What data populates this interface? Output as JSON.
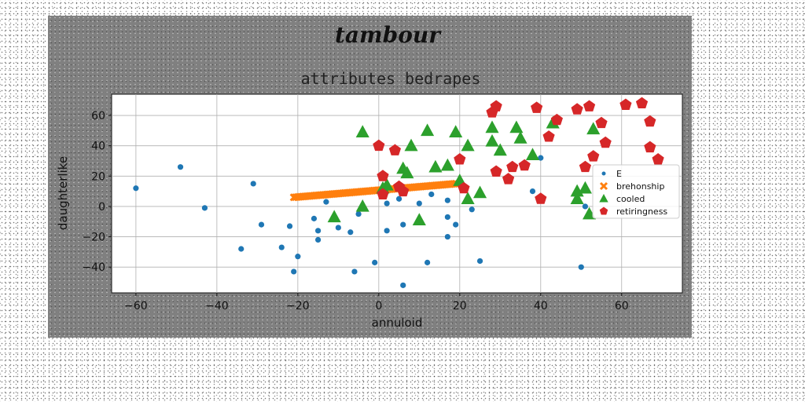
{
  "chart_data": {
    "type": "scatter",
    "suptitle": "tambour",
    "title": "attributes bedrapes",
    "xlabel": "annuloid",
    "ylabel": "daughterlike",
    "xlim": [
      -66,
      75
    ],
    "ylim": [
      -57,
      74
    ],
    "xticks": [
      -60,
      -40,
      -20,
      0,
      20,
      40,
      60
    ],
    "yticks": [
      -40,
      -20,
      0,
      20,
      40,
      60
    ],
    "grid": true,
    "legend_position": "right",
    "series": [
      {
        "name": "E",
        "marker": "circle",
        "color": "#1f77b4",
        "points": [
          [
            -60,
            12
          ],
          [
            -49,
            26
          ],
          [
            -43,
            -1
          ],
          [
            -31,
            15
          ],
          [
            -29,
            -12
          ],
          [
            -34,
            -28
          ],
          [
            -24,
            -27
          ],
          [
            -22,
            -13
          ],
          [
            -21,
            -43
          ],
          [
            -20,
            -33
          ],
          [
            -16,
            -8
          ],
          [
            -15,
            -16
          ],
          [
            -15,
            -22
          ],
          [
            -13,
            3
          ],
          [
            -11,
            -8
          ],
          [
            -10,
            -14
          ],
          [
            -7,
            -17
          ],
          [
            -6,
            -43
          ],
          [
            -5,
            -5
          ],
          [
            -1,
            -37
          ],
          [
            2,
            2
          ],
          [
            2,
            -16
          ],
          [
            5,
            5
          ],
          [
            6,
            -12
          ],
          [
            6,
            -52
          ],
          [
            10,
            2
          ],
          [
            12,
            -37
          ],
          [
            13,
            8
          ],
          [
            17,
            4
          ],
          [
            17,
            -7
          ],
          [
            17,
            -20
          ],
          [
            19,
            -12
          ],
          [
            23,
            -2
          ],
          [
            25,
            -36
          ],
          [
            38,
            10
          ],
          [
            40,
            32
          ],
          [
            50,
            -40
          ],
          [
            51,
            0
          ]
        ]
      },
      {
        "name": "brehonship",
        "marker": "x",
        "color": "#ff7f0e",
        "line": {
          "x_start": -21,
          "y_start": 6,
          "x_end": 19,
          "y_end": 15
        }
      },
      {
        "name": "cooled",
        "marker": "triangle",
        "color": "#2ca02c",
        "points": [
          [
            -4,
            49
          ],
          [
            8,
            40
          ],
          [
            12,
            50
          ],
          [
            19,
            49
          ],
          [
            22,
            40
          ],
          [
            28,
            52
          ],
          [
            34,
            52
          ],
          [
            43,
            55
          ],
          [
            53,
            51
          ],
          [
            28,
            43
          ],
          [
            30,
            37
          ],
          [
            35,
            45
          ],
          [
            38,
            34
          ],
          [
            14,
            26
          ],
          [
            17,
            27
          ],
          [
            6,
            25
          ],
          [
            7,
            22
          ],
          [
            1,
            12
          ],
          [
            2,
            14
          ],
          [
            20,
            17
          ],
          [
            22,
            5
          ],
          [
            25,
            9
          ],
          [
            -4,
            0
          ],
          [
            -11,
            -7
          ],
          [
            10,
            -9
          ],
          [
            49,
            10
          ],
          [
            51,
            12
          ],
          [
            49,
            5
          ],
          [
            52,
            -5
          ]
        ]
      },
      {
        "name": "retiringness",
        "marker": "pentagon",
        "color": "#d62728",
        "points": [
          [
            0,
            40
          ],
          [
            4,
            37
          ],
          [
            1,
            20
          ],
          [
            1,
            8
          ],
          [
            5,
            13
          ],
          [
            6,
            10
          ],
          [
            20,
            31
          ],
          [
            21,
            12
          ],
          [
            28,
            62
          ],
          [
            29,
            66
          ],
          [
            39,
            65
          ],
          [
            42,
            46
          ],
          [
            44,
            57
          ],
          [
            49,
            64
          ],
          [
            52,
            66
          ],
          [
            55,
            55
          ],
          [
            61,
            67
          ],
          [
            65,
            68
          ],
          [
            67,
            56
          ],
          [
            56,
            42
          ],
          [
            53,
            33
          ],
          [
            51,
            26
          ],
          [
            67,
            39
          ],
          [
            69,
            31
          ],
          [
            29,
            23
          ],
          [
            32,
            18
          ],
          [
            33,
            26
          ],
          [
            36,
            27
          ],
          [
            40,
            5
          ]
        ]
      }
    ]
  }
}
